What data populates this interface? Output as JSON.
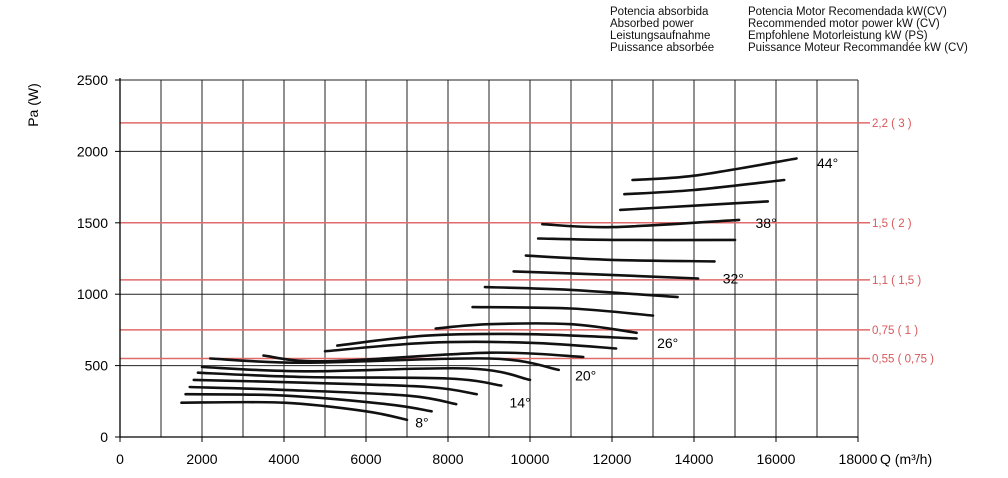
{
  "legend": {
    "absorbed": [
      "Potencia absorbida",
      "Absorbed power",
      "Leistungsaufnahme",
      "Puissance absorbée"
    ],
    "recommended": [
      "Potencia Motor Recomendada kW(CV)",
      "Recommended motor power kW (CV)",
      "Empfohlene Motorleistung kW (PS)",
      "Puissance Moteur Recommandée kW (CV)"
    ]
  },
  "colors": {
    "curve": "#111111",
    "motor_line": "#e06a6a",
    "motor_label": "#d8585a",
    "grid": "#222222"
  },
  "chart_data": {
    "type": "line",
    "xlabel": "Q (m³/h)",
    "ylabel": "Pa (W)",
    "xlim": [
      0,
      18000
    ],
    "ylim": [
      0,
      2500
    ],
    "x_ticks": [
      "0",
      "2000",
      "4000",
      "6000",
      "8000",
      "10000",
      "12000",
      "14000",
      "16000",
      "18000"
    ],
    "y_ticks": [
      "0",
      "500",
      "1000",
      "1500",
      "2000",
      "2500"
    ],
    "grid": true,
    "motor_lines": [
      {
        "label": "0,55 ( 0,75 )",
        "y": 550
      },
      {
        "label": "0,75 ( 1 )",
        "y": 750
      },
      {
        "label": "1,1 ( 1,5 )",
        "y": 1100
      },
      {
        "label": "1,5 ( 2 )",
        "y": 1500
      },
      {
        "label": "2,2 ( 3 )",
        "y": 2200
      }
    ],
    "series": [
      {
        "values": [
          [
            1500,
            240
          ],
          [
            4000,
            240
          ],
          [
            6000,
            180
          ],
          [
            7000,
            120
          ]
        ]
      },
      {
        "values": [
          [
            1600,
            300
          ],
          [
            4000,
            290
          ],
          [
            6500,
            230
          ],
          [
            7600,
            180
          ]
        ]
      },
      {
        "values": [
          [
            1700,
            350
          ],
          [
            4000,
            330
          ],
          [
            7000,
            290
          ],
          [
            8200,
            230
          ]
        ]
      },
      {
        "name": "14°",
        "label_at": [
          9500,
          240
        ],
        "values": [
          [
            1800,
            400
          ],
          [
            4500,
            380
          ],
          [
            7500,
            350
          ],
          [
            8700,
            300
          ]
        ]
      },
      {
        "values": [
          [
            1900,
            450
          ],
          [
            4500,
            420
          ],
          [
            8000,
            410
          ],
          [
            9300,
            360
          ]
        ]
      },
      {
        "values": [
          [
            2000,
            490
          ],
          [
            4500,
            460
          ],
          [
            8500,
            480
          ],
          [
            10000,
            400
          ]
        ]
      },
      {
        "name": "20°",
        "label_at": [
          11100,
          430
        ],
        "values": [
          [
            2200,
            550
          ],
          [
            4500,
            520
          ],
          [
            9000,
            550
          ],
          [
            10700,
            470
          ]
        ]
      },
      {
        "values": [
          [
            3500,
            570
          ],
          [
            5000,
            530
          ],
          [
            9000,
            590
          ],
          [
            11300,
            560
          ]
        ]
      },
      {
        "values": [
          [
            5000,
            600
          ],
          [
            7500,
            660
          ],
          [
            10000,
            660
          ],
          [
            12100,
            620
          ]
        ]
      },
      {
        "values": [
          [
            5300,
            640
          ],
          [
            7500,
            710
          ],
          [
            10000,
            720
          ],
          [
            12600,
            690
          ]
        ]
      },
      {
        "name": "26°",
        "label_at": [
          13100,
          660
        ],
        "values": [
          [
            7700,
            760
          ],
          [
            9000,
            790
          ],
          [
            11000,
            790
          ],
          [
            12600,
            730
          ]
        ]
      },
      {
        "values": [
          [
            8600,
            910
          ],
          [
            11000,
            900
          ],
          [
            13000,
            850
          ]
        ]
      },
      {
        "values": [
          [
            8900,
            1050
          ],
          [
            11000,
            1030
          ],
          [
            13600,
            980
          ]
        ]
      },
      {
        "name": "32°",
        "label_at": [
          14700,
          1110
        ],
        "values": [
          [
            9600,
            1160
          ],
          [
            11500,
            1140
          ],
          [
            14100,
            1110
          ]
        ]
      },
      {
        "values": [
          [
            9900,
            1270
          ],
          [
            12000,
            1240
          ],
          [
            14500,
            1230
          ]
        ]
      },
      {
        "values": [
          [
            10200,
            1390
          ],
          [
            12000,
            1380
          ],
          [
            15000,
            1380
          ]
        ]
      },
      {
        "name": "38°",
        "label_at": [
          15500,
          1500
        ],
        "values": [
          [
            10300,
            1490
          ],
          [
            12000,
            1470
          ],
          [
            15100,
            1520
          ]
        ]
      },
      {
        "values": [
          [
            12200,
            1590
          ],
          [
            14000,
            1620
          ],
          [
            15800,
            1650
          ]
        ]
      },
      {
        "values": [
          [
            12300,
            1700
          ],
          [
            14000,
            1730
          ],
          [
            16200,
            1800
          ]
        ]
      },
      {
        "name": "44°",
        "label_at": [
          17000,
          1920
        ],
        "values": [
          [
            12500,
            1800
          ],
          [
            14000,
            1830
          ],
          [
            16500,
            1950
          ]
        ]
      },
      {
        "name": "8°",
        "label_at": [
          7200,
          100
        ],
        "values": []
      }
    ]
  }
}
